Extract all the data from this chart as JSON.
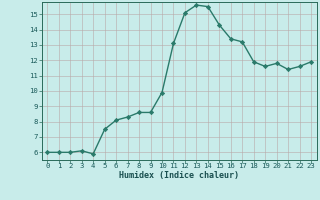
{
  "x": [
    0,
    1,
    2,
    3,
    4,
    5,
    6,
    7,
    8,
    9,
    10,
    11,
    12,
    13,
    14,
    15,
    16,
    17,
    18,
    19,
    20,
    21,
    22,
    23
  ],
  "y": [
    6.0,
    6.0,
    6.0,
    6.1,
    5.9,
    7.5,
    8.1,
    8.3,
    8.6,
    8.6,
    9.9,
    13.1,
    15.1,
    15.6,
    15.5,
    14.3,
    13.4,
    13.2,
    11.9,
    11.6,
    11.8,
    11.4,
    11.6,
    11.9
  ],
  "xlabel": "Humidex (Indice chaleur)",
  "xlim": [
    -0.5,
    23.5
  ],
  "ylim": [
    5.5,
    15.8
  ],
  "yticks": [
    6,
    7,
    8,
    9,
    10,
    11,
    12,
    13,
    14,
    15
  ],
  "xticks": [
    0,
    1,
    2,
    3,
    4,
    5,
    6,
    7,
    8,
    9,
    10,
    11,
    12,
    13,
    14,
    15,
    16,
    17,
    18,
    19,
    20,
    21,
    22,
    23
  ],
  "line_color": "#2a7a6a",
  "marker": "D",
  "marker_size": 2.2,
  "bg_color": "#c8ecea",
  "grid_color": "#b8a8a8",
  "axis_color": "#2a6a5a",
  "tick_label_color": "#1a5a5a",
  "xlabel_color": "#1a5050",
  "line_width": 1.0,
  "tick_fontsize": 5.2,
  "xlabel_fontsize": 6.0
}
